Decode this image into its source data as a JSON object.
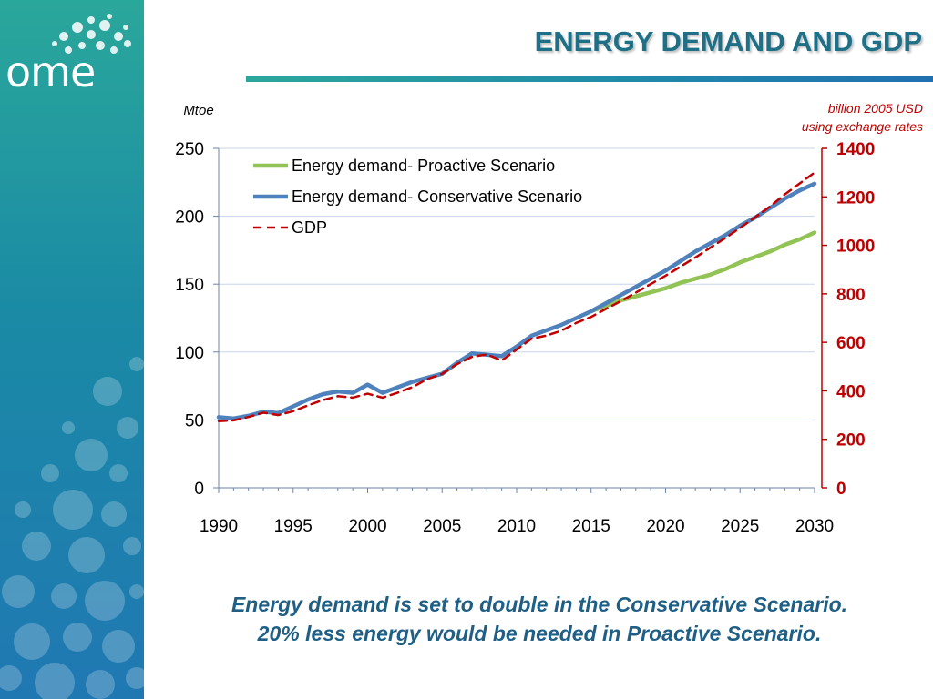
{
  "slide": {
    "title": "ENERGY DEMAND AND GDP",
    "logo_text": "ome",
    "caption_line1": "Energy demand is set to double in the Conservative Scenario.",
    "caption_line2": "20% less energy would be needed in Proactive Scenario."
  },
  "colors": {
    "accent": "#1f6f86",
    "proactive": "#92c355",
    "conservative": "#4f81bd",
    "gdp": "#c00000"
  },
  "chart_data": {
    "type": "line",
    "title": "",
    "left_axis_label": "Mtoe",
    "right_axis_label_line1": "billion 2005 USD",
    "right_axis_label_line2": "using exchange rates",
    "ylim_left": [
      0,
      250
    ],
    "ylim_right": [
      0,
      1400
    ],
    "yticks_left": [
      0,
      50,
      100,
      150,
      200,
      250
    ],
    "yticks_right": [
      0,
      200,
      400,
      600,
      800,
      1000,
      1200,
      1400
    ],
    "xlim": [
      1990,
      2030
    ],
    "xticks": [
      1990,
      1995,
      2000,
      2005,
      2010,
      2015,
      2020,
      2025,
      2030
    ],
    "grid": true,
    "legend_position": "top-left",
    "series": [
      {
        "name": "Energy demand- Proactive Scenario",
        "axis": "left",
        "style": "solid",
        "x": [
          2015,
          2016,
          2017,
          2018,
          2019,
          2020,
          2021,
          2022,
          2023,
          2024,
          2025,
          2026,
          2027,
          2028,
          2029,
          2030
        ],
        "values": [
          130,
          134,
          138,
          141,
          144,
          147,
          151,
          154,
          157,
          161,
          166,
          170,
          174,
          179,
          183,
          188
        ]
      },
      {
        "name": "Energy demand- Conservative Scenario",
        "axis": "left",
        "style": "solid",
        "x": [
          1990,
          1991,
          1992,
          1993,
          1994,
          1995,
          1996,
          1997,
          1998,
          1999,
          2000,
          2001,
          2002,
          2003,
          2004,
          2005,
          2006,
          2007,
          2008,
          2009,
          2010,
          2011,
          2012,
          2013,
          2014,
          2015,
          2016,
          2017,
          2018,
          2019,
          2020,
          2021,
          2022,
          2023,
          2024,
          2025,
          2026,
          2027,
          2028,
          2029,
          2030
        ],
        "values": [
          52,
          51,
          53,
          56,
          55,
          60,
          65,
          69,
          71,
          70,
          76,
          70,
          74,
          78,
          81,
          84,
          92,
          99,
          98,
          97,
          104,
          112,
          116,
          120,
          125,
          130,
          136,
          142,
          148,
          154,
          160,
          167,
          174,
          180,
          186,
          193,
          199,
          206,
          213,
          219,
          224
        ]
      },
      {
        "name": "GDP",
        "axis": "right",
        "style": "dashed",
        "x": [
          1990,
          1991,
          1992,
          1993,
          1994,
          1995,
          1996,
          1997,
          1998,
          1999,
          2000,
          2001,
          2002,
          2003,
          2004,
          2005,
          2006,
          2007,
          2008,
          2009,
          2010,
          2011,
          2012,
          2013,
          2014,
          2015,
          2016,
          2017,
          2018,
          2019,
          2020,
          2021,
          2022,
          2023,
          2024,
          2025,
          2026,
          2027,
          2028,
          2029,
          2030
        ],
        "values": [
          275,
          278,
          292,
          310,
          300,
          316,
          340,
          362,
          378,
          372,
          388,
          372,
          392,
          415,
          448,
          470,
          510,
          540,
          550,
          525,
          570,
          615,
          628,
          648,
          680,
          705,
          738,
          770,
          805,
          840,
          875,
          912,
          950,
          990,
          1030,
          1072,
          1115,
          1160,
          1210,
          1255,
          1300
        ]
      }
    ]
  }
}
